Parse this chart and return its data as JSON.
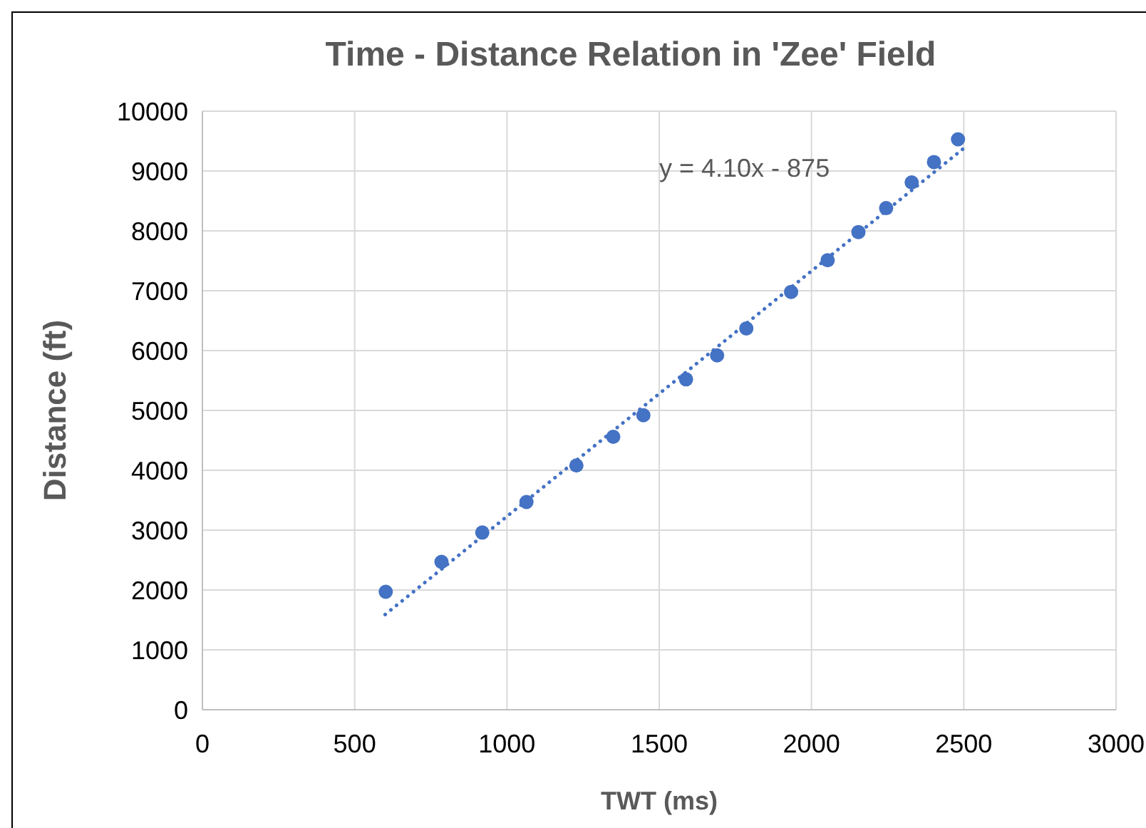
{
  "chart_data": {
    "type": "scatter",
    "title": "Time - Distance Relation in 'Zee' Field",
    "xlabel": "TWT (ms)",
    "ylabel": "Distance (ft)",
    "xlim": [
      0,
      3000
    ],
    "xticks": [
      0,
      500,
      1000,
      1500,
      2000,
      2500,
      3000
    ],
    "ylim": [
      0,
      10000
    ],
    "yticks": [
      0,
      1000,
      2000,
      3000,
      4000,
      5000,
      6000,
      7000,
      8000,
      9000,
      10000
    ],
    "grid": true,
    "marker": "circle",
    "series": [
      {
        "color": "#4472c4",
        "x": [
          602,
          785,
          919,
          1064,
          1228,
          1349,
          1448,
          1588,
          1690,
          1786,
          1933,
          2053,
          2154,
          2245,
          2329,
          2402,
          2481
        ],
        "values": [
          1970,
          2470,
          2960,
          3470,
          4080,
          4560,
          4920,
          5520,
          5920,
          6370,
          6980,
          7510,
          7980,
          8380,
          8810,
          9150,
          9530
        ]
      },
      {
        "type": "line",
        "color": "#4472c4",
        "line_style": "dotted",
        "marker": "none",
        "x": [
          600,
          2500
        ],
        "values": [
          1590,
          9380
        ]
      }
    ],
    "annotations": [
      "y = 4.10x - 875"
    ]
  }
}
